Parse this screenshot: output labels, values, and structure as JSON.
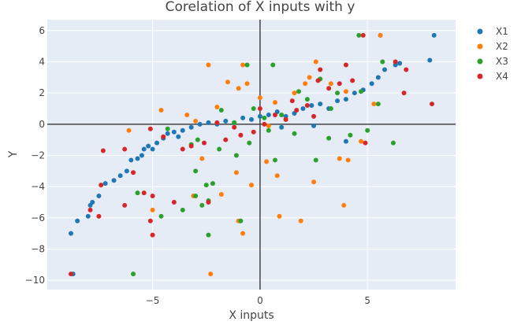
{
  "chart_data": {
    "type": "scatter",
    "title": "Corelation of X inputs with y",
    "xlabel": "X inputs",
    "ylabel": "Y",
    "xlim": [
      -9.9,
      9.1
    ],
    "ylim": [
      -10.6,
      6.7
    ],
    "xticks": [
      -5,
      0,
      5
    ],
    "yticks": [
      -10,
      -8,
      -6,
      -4,
      -2,
      0,
      2,
      4,
      6
    ],
    "grid": true,
    "legend_position": "top-right",
    "colors": {
      "plot_bg": "#e5ecf6",
      "grid": "#ffffff",
      "zero_line": "#444444"
    },
    "series": [
      {
        "name": "X1",
        "color": "#1f77b4",
        "points": [
          [
            -8.7,
            -9.6
          ],
          [
            -8.8,
            -7.0
          ],
          [
            -8.5,
            -6.2
          ],
          [
            -8.0,
            -5.9
          ],
          [
            -7.9,
            -5.2
          ],
          [
            -7.8,
            -5.0
          ],
          [
            -7.5,
            -4.6
          ],
          [
            -7.2,
            -3.8
          ],
          [
            -6.8,
            -3.6
          ],
          [
            -6.5,
            -3.3
          ],
          [
            -6.2,
            -3.0
          ],
          [
            -6.0,
            -2.3
          ],
          [
            -5.7,
            -2.2
          ],
          [
            -5.4,
            -1.6
          ],
          [
            -5.2,
            -1.4
          ],
          [
            -5.0,
            -1.6
          ],
          [
            -4.8,
            -1.2
          ],
          [
            -4.5,
            -0.9
          ],
          [
            -4.3,
            -0.6
          ],
          [
            -4.0,
            -0.5
          ],
          [
            -3.6,
            -0.4
          ],
          [
            -3.2,
            -0.2
          ],
          [
            -2.8,
            0.0
          ],
          [
            -2.4,
            0.1
          ],
          [
            -2.0,
            0.0
          ],
          [
            -1.6,
            0.2
          ],
          [
            -1.2,
            0.1
          ],
          [
            -0.8,
            0.4
          ],
          [
            -0.4,
            0.3
          ],
          [
            0.0,
            0.5
          ],
          [
            0.4,
            0.6
          ],
          [
            0.8,
            0.8
          ],
          [
            1.2,
            0.5
          ],
          [
            1.6,
            0.7
          ],
          [
            2.0,
            1.0
          ],
          [
            2.4,
            1.2
          ],
          [
            2.8,
            1.3
          ],
          [
            3.2,
            1.0
          ],
          [
            3.6,
            1.5
          ],
          [
            4.0,
            1.6
          ],
          [
            4.4,
            2.0
          ],
          [
            4.8,
            2.2
          ],
          [
            5.2,
            2.6
          ],
          [
            5.5,
            3.0
          ],
          [
            5.8,
            3.5
          ],
          [
            6.3,
            3.8
          ],
          [
            6.5,
            3.9
          ],
          [
            7.9,
            4.1
          ],
          [
            8.1,
            5.7
          ],
          [
            5.6,
            5.7
          ],
          [
            1.0,
            -0.2
          ],
          [
            2.5,
            -0.1
          ],
          [
            4.0,
            -1.1
          ],
          [
            -3.8,
            -0.8
          ],
          [
            -5.5,
            -2.0
          ]
        ]
      },
      {
        "name": "X2",
        "color": "#ff7f0e",
        "points": [
          [
            -2.3,
            -9.6
          ],
          [
            -0.8,
            -7.0
          ],
          [
            -1.0,
            -6.2
          ],
          [
            0.9,
            -5.9
          ],
          [
            1.9,
            -6.2
          ],
          [
            3.9,
            -5.2
          ],
          [
            -5.0,
            -5.5
          ],
          [
            -3.1,
            -4.6
          ],
          [
            -1.8,
            -4.5
          ],
          [
            -0.4,
            -3.9
          ],
          [
            0.8,
            -3.3
          ],
          [
            2.5,
            -3.7
          ],
          [
            -1.1,
            -3.1
          ],
          [
            3.7,
            -2.2
          ],
          [
            4.1,
            -2.3
          ],
          [
            -2.7,
            -2.2
          ],
          [
            0.3,
            -2.4
          ],
          [
            -6.1,
            -0.4
          ],
          [
            -4.6,
            0.9
          ],
          [
            -3.4,
            0.6
          ],
          [
            -2.0,
            1.1
          ],
          [
            -1.0,
            2.3
          ],
          [
            -0.6,
            2.6
          ],
          [
            0.0,
            1.7
          ],
          [
            0.7,
            1.4
          ],
          [
            1.6,
            2.0
          ],
          [
            2.1,
            2.6
          ],
          [
            2.3,
            3.0
          ],
          [
            2.6,
            4.0
          ],
          [
            3.3,
            2.6
          ],
          [
            4.0,
            2.1
          ],
          [
            5.3,
            1.3
          ],
          [
            5.6,
            5.7
          ],
          [
            -2.4,
            3.8
          ],
          [
            -0.8,
            3.8
          ],
          [
            -1.5,
            2.7
          ],
          [
            0.4,
            -0.1
          ],
          [
            1.2,
            0.3
          ],
          [
            -3.0,
            0.2
          ],
          [
            4.7,
            -1.1
          ]
        ]
      },
      {
        "name": "X3",
        "color": "#2ca02c",
        "points": [
          [
            -5.9,
            -9.6
          ],
          [
            -2.4,
            -7.1
          ],
          [
            -0.9,
            -6.2
          ],
          [
            -4.6,
            -5.9
          ],
          [
            -3.6,
            -5.5
          ],
          [
            -2.7,
            -5.2
          ],
          [
            -2.4,
            -4.9
          ],
          [
            -3.0,
            -4.6
          ],
          [
            -5.7,
            -4.4
          ],
          [
            -2.2,
            -3.8
          ],
          [
            -2.5,
            -3.9
          ],
          [
            -3.0,
            -3.0
          ],
          [
            -3.2,
            -1.3
          ],
          [
            -0.5,
            -1.2
          ],
          [
            -1.9,
            -1.6
          ],
          [
            0.7,
            -2.3
          ],
          [
            2.6,
            -2.3
          ],
          [
            -1.1,
            -2.0
          ],
          [
            -2.9,
            -1.0
          ],
          [
            0.4,
            -0.4
          ],
          [
            1.6,
            -0.6
          ],
          [
            3.2,
            -0.9
          ],
          [
            4.2,
            -0.7
          ],
          [
            5.0,
            -0.4
          ],
          [
            5.5,
            1.3
          ],
          [
            5.7,
            4.0
          ],
          [
            4.6,
            5.7
          ],
          [
            -0.6,
            3.8
          ],
          [
            0.6,
            3.8
          ],
          [
            1.8,
            2.1
          ],
          [
            2.8,
            2.9
          ],
          [
            3.6,
            2.0
          ],
          [
            4.7,
            2.1
          ],
          [
            -1.8,
            0.9
          ],
          [
            -0.3,
            1.0
          ],
          [
            1.0,
            0.6
          ],
          [
            2.2,
            1.6
          ],
          [
            3.3,
            1.0
          ],
          [
            6.2,
            -1.2
          ],
          [
            -4.3,
            -0.3
          ],
          [
            -1.2,
            0.1
          ],
          [
            0.2,
            0.4
          ]
        ]
      },
      {
        "name": "X4",
        "color": "#d62728",
        "points": [
          [
            -8.8,
            -9.6
          ],
          [
            -5.0,
            -7.1
          ],
          [
            -5.1,
            -6.2
          ],
          [
            -7.5,
            -5.9
          ],
          [
            -7.9,
            -5.5
          ],
          [
            -5.0,
            -4.6
          ],
          [
            -6.3,
            -5.2
          ],
          [
            -4.0,
            -5.0
          ],
          [
            -2.4,
            -5.0
          ],
          [
            -5.9,
            -3.1
          ],
          [
            -7.4,
            -3.9
          ],
          [
            -5.4,
            -4.4
          ],
          [
            -7.3,
            -1.7
          ],
          [
            -6.3,
            -1.6
          ],
          [
            -3.6,
            -1.6
          ],
          [
            -3.2,
            -1.4
          ],
          [
            -2.6,
            -1.2
          ],
          [
            -1.6,
            -1.0
          ],
          [
            -0.9,
            -0.7
          ],
          [
            -0.3,
            -0.5
          ],
          [
            0.2,
            0.0
          ],
          [
            0.7,
            0.6
          ],
          [
            1.2,
            0.3
          ],
          [
            1.7,
            0.9
          ],
          [
            2.2,
            1.2
          ],
          [
            2.7,
            2.8
          ],
          [
            3.2,
            2.3
          ],
          [
            3.7,
            2.6
          ],
          [
            4.3,
            2.8
          ],
          [
            4.8,
            5.7
          ],
          [
            6.3,
            4.0
          ],
          [
            6.8,
            3.5
          ],
          [
            6.7,
            2.0
          ],
          [
            8.0,
            1.3
          ],
          [
            4.0,
            3.8
          ],
          [
            2.8,
            3.5
          ],
          [
            4.9,
            -1.2
          ],
          [
            -5.1,
            -0.3
          ],
          [
            -4.5,
            -0.8
          ],
          [
            -2.0,
            0.1
          ],
          [
            0.0,
            1.0
          ],
          [
            1.5,
            1.5
          ],
          [
            2.5,
            0.5
          ],
          [
            -1.2,
            -0.2
          ]
        ]
      }
    ]
  }
}
